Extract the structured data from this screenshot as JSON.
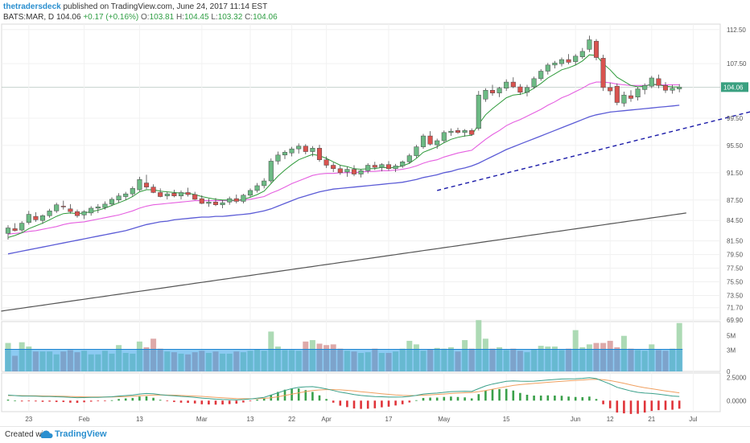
{
  "header": {
    "username": "thetradersdeck",
    "published": "published on TradingView.com, June 24, 2017 11:14 EST",
    "symbol": "BATS:MAR, D",
    "last": "104.06",
    "change": "+0.17 (+0.16%)",
    "open_label": "O:",
    "open": "103.81",
    "high_label": "H:",
    "high": "104.45",
    "low_label": "L:",
    "low": "103.32",
    "close_label": "C:",
    "close": "104.06"
  },
  "footer": {
    "created_with": "Created with",
    "brand": "TradingView"
  },
  "colors": {
    "up": "#6cba84",
    "down": "#d9534f",
    "ema_short": "#2e9a3a",
    "ema_mid": "#e55ee0",
    "ema_long": "#5b5bd6",
    "sma_long": "#555555",
    "trendline": "#1a1aa8",
    "volume_up": "#9fd3a8",
    "volume_down": "#d89a9a",
    "volume_ma": "#2e9ee8",
    "macd": "#3aa08a",
    "signal": "#f0a060",
    "price_tag": "#3aa080"
  },
  "chart_data": [
    {
      "type": "candlestick",
      "panel": "price",
      "ylim": [
        69.9,
        113.3
      ],
      "y_ticks": [
        "112.50",
        "107.50",
        "104.06",
        "99.50",
        "95.50",
        "91.50",
        "87.50",
        "84.50",
        "81.50",
        "79.50",
        "77.50",
        "75.50",
        "73.50",
        "71.70",
        "69.90"
      ],
      "x_ticks": [
        "23",
        "Feb",
        "13",
        "Mar",
        "13",
        "22",
        "Apr",
        "17",
        "May",
        "15",
        "Jun",
        "12",
        "21",
        "Jul"
      ],
      "last_price": "104.06",
      "candles": [
        [
          82.6,
          83.8,
          81.7,
          83.4
        ],
        [
          83.3,
          84.1,
          82.9,
          83.0
        ],
        [
          83.1,
          84.4,
          82.8,
          84.1
        ],
        [
          84.2,
          85.9,
          83.9,
          85.4
        ],
        [
          85.1,
          85.7,
          84.3,
          84.6
        ],
        [
          84.5,
          85.4,
          84.0,
          85.2
        ],
        [
          85.2,
          86.2,
          84.9,
          85.9
        ],
        [
          85.9,
          87.1,
          85.6,
          86.8
        ],
        [
          86.6,
          87.4,
          86.1,
          86.5
        ],
        [
          86.2,
          86.9,
          85.5,
          85.8
        ],
        [
          85.8,
          86.1,
          84.9,
          85.2
        ],
        [
          85.3,
          86.0,
          84.7,
          85.8
        ],
        [
          85.6,
          86.6,
          85.2,
          86.3
        ],
        [
          86.3,
          86.9,
          85.6,
          86.5
        ],
        [
          86.4,
          87.3,
          86.1,
          86.9
        ],
        [
          86.9,
          87.9,
          86.6,
          87.6
        ],
        [
          87.5,
          88.5,
          87.1,
          88.1
        ],
        [
          88.0,
          88.7,
          87.5,
          88.4
        ],
        [
          88.4,
          89.5,
          88.0,
          89.2
        ],
        [
          89.0,
          90.9,
          88.8,
          90.5
        ],
        [
          90.0,
          91.2,
          89.1,
          89.4
        ],
        [
          89.4,
          89.8,
          88.5,
          88.6
        ],
        [
          88.6,
          89.2,
          87.9,
          88.0
        ],
        [
          88.1,
          88.7,
          87.6,
          88.4
        ],
        [
          88.5,
          89.0,
          87.9,
          88.1
        ],
        [
          88.1,
          88.9,
          87.6,
          88.6
        ],
        [
          88.6,
          89.3,
          88.0,
          88.3
        ],
        [
          88.3,
          88.7,
          87.5,
          87.6
        ],
        [
          87.7,
          88.2,
          86.9,
          87.0
        ],
        [
          87.0,
          87.7,
          86.5,
          87.2
        ],
        [
          87.2,
          87.8,
          86.6,
          86.8
        ],
        [
          86.8,
          87.5,
          86.3,
          87.1
        ],
        [
          87.2,
          88.0,
          86.8,
          87.7
        ],
        [
          87.7,
          88.3,
          87.0,
          87.3
        ],
        [
          87.3,
          88.4,
          87.0,
          88.2
        ],
        [
          88.2,
          89.2,
          87.9,
          88.9
        ],
        [
          88.9,
          90.0,
          88.6,
          89.6
        ],
        [
          89.6,
          90.7,
          89.2,
          90.3
        ],
        [
          90.3,
          93.6,
          90.0,
          93.2
        ],
        [
          93.2,
          94.6,
          92.7,
          94.1
        ],
        [
          94.1,
          94.8,
          93.5,
          94.5
        ],
        [
          94.4,
          95.3,
          93.9,
          95.0
        ],
        [
          95.0,
          95.8,
          94.3,
          95.4
        ],
        [
          95.4,
          95.7,
          94.2,
          94.6
        ],
        [
          94.6,
          95.4,
          93.9,
          95.1
        ],
        [
          95.1,
          95.6,
          93.1,
          93.4
        ],
        [
          93.4,
          93.9,
          92.2,
          92.6
        ],
        [
          92.6,
          93.0,
          91.6,
          92.1
        ],
        [
          92.1,
          92.6,
          91.2,
          91.5
        ],
        [
          91.6,
          92.4,
          90.9,
          92.0
        ],
        [
          92.0,
          92.6,
          91.0,
          91.3
        ],
        [
          91.3,
          92.0,
          90.8,
          91.8
        ],
        [
          91.8,
          92.9,
          91.4,
          92.6
        ],
        [
          92.6,
          93.1,
          91.9,
          92.3
        ],
        [
          92.3,
          92.9,
          91.7,
          92.7
        ],
        [
          92.7,
          93.2,
          91.8,
          92.1
        ],
        [
          92.1,
          92.8,
          91.6,
          92.5
        ],
        [
          92.5,
          93.3,
          92.2,
          93.1
        ],
        [
          93.1,
          94.3,
          92.8,
          94.0
        ],
        [
          94.0,
          95.6,
          93.7,
          95.3
        ],
        [
          95.3,
          97.2,
          95.0,
          96.9
        ],
        [
          96.9,
          97.6,
          95.5,
          95.7
        ],
        [
          95.6,
          96.5,
          95.0,
          96.2
        ],
        [
          96.2,
          97.7,
          95.9,
          97.4
        ],
        [
          97.4,
          98.0,
          96.9,
          97.6
        ],
        [
          97.7,
          98.1,
          97.2,
          97.4
        ],
        [
          97.4,
          97.9,
          96.8,
          97.7
        ],
        [
          97.7,
          98.0,
          96.9,
          97.1
        ],
        [
          98.0,
          103.5,
          97.7,
          102.9
        ],
        [
          102.3,
          103.9,
          101.9,
          103.6
        ],
        [
          103.6,
          104.4,
          102.8,
          103.2
        ],
        [
          103.2,
          104.1,
          102.6,
          103.9
        ],
        [
          103.9,
          105.2,
          103.5,
          104.8
        ],
        [
          104.8,
          105.5,
          103.9,
          104.1
        ],
        [
          104.1,
          104.5,
          102.9,
          103.3
        ],
        [
          103.3,
          104.4,
          102.7,
          104.0
        ],
        [
          104.1,
          105.6,
          103.8,
          105.3
        ],
        [
          105.3,
          106.7,
          105.0,
          106.4
        ],
        [
          106.4,
          107.6,
          105.9,
          107.3
        ],
        [
          107.3,
          107.9,
          106.8,
          107.6
        ],
        [
          107.5,
          108.4,
          107.1,
          108.1
        ],
        [
          108.1,
          108.9,
          107.4,
          107.7
        ],
        [
          107.8,
          108.9,
          107.3,
          108.6
        ],
        [
          108.5,
          109.8,
          108.2,
          109.3
        ],
        [
          109.6,
          111.6,
          109.2,
          111.0
        ],
        [
          110.8,
          111.1,
          108.0,
          108.4
        ],
        [
          108.3,
          108.8,
          103.5,
          104.0
        ],
        [
          104.0,
          104.7,
          102.9,
          103.5
        ],
        [
          104.2,
          104.6,
          101.4,
          101.8
        ],
        [
          101.7,
          103.4,
          101.2,
          102.9
        ],
        [
          102.8,
          103.6,
          101.9,
          102.4
        ],
        [
          102.6,
          104.1,
          102.1,
          103.8
        ],
        [
          103.7,
          104.6,
          103.0,
          104.3
        ],
        [
          104.2,
          105.7,
          103.9,
          105.4
        ],
        [
          105.3,
          105.9,
          103.9,
          104.3
        ],
        [
          104.3,
          104.8,
          103.2,
          103.6
        ],
        [
          103.6,
          104.4,
          103.1,
          103.9
        ],
        [
          103.8,
          104.5,
          103.3,
          104.06
        ]
      ],
      "ema_short": [
        82.0,
        82.3,
        82.7,
        83.3,
        83.7,
        84.1,
        84.6,
        85.1,
        85.5,
        85.6,
        85.5,
        85.6,
        85.8,
        86.0,
        86.3,
        86.7,
        87.1,
        87.5,
        88.0,
        88.7,
        89.0,
        89.0,
        88.8,
        88.7,
        88.6,
        88.5,
        88.5,
        88.3,
        88.0,
        87.8,
        87.6,
        87.5,
        87.5,
        87.4,
        87.6,
        87.9,
        88.3,
        88.8,
        89.9,
        91.0,
        91.9,
        92.7,
        93.4,
        93.8,
        94.2,
        94.0,
        93.6,
        93.1,
        92.6,
        92.4,
        92.1,
        92.0,
        92.1,
        92.1,
        92.3,
        92.2,
        92.3,
        92.5,
        92.9,
        93.6,
        94.5,
        94.9,
        95.3,
        95.9,
        96.4,
        96.7,
        96.9,
        97.0,
        98.6,
        100.0,
        100.9,
        101.7,
        102.5,
        102.9,
        103.0,
        103.3,
        103.9,
        104.6,
        105.4,
        106.0,
        106.6,
        106.9,
        107.3,
        107.9,
        108.8,
        108.7,
        107.5,
        106.6,
        105.5,
        104.9,
        104.3,
        104.1,
        104.2,
        104.5,
        104.4,
        104.2,
        104.1,
        104.07
      ],
      "ema_mid": [
        82.5,
        82.6,
        82.7,
        82.9,
        83.0,
        83.2,
        83.4,
        83.6,
        83.9,
        84.1,
        84.2,
        84.3,
        84.5,
        84.7,
        84.9,
        85.1,
        85.3,
        85.6,
        85.9,
        86.3,
        86.6,
        86.8,
        86.9,
        87.0,
        87.1,
        87.2,
        87.3,
        87.4,
        87.4,
        87.4,
        87.4,
        87.4,
        87.4,
        87.4,
        87.5,
        87.6,
        87.8,
        88.0,
        88.5,
        88.9,
        89.4,
        89.9,
        90.3,
        90.7,
        91.1,
        91.3,
        91.4,
        91.4,
        91.5,
        91.5,
        91.5,
        91.6,
        91.7,
        91.7,
        91.8,
        91.8,
        91.9,
        92.0,
        92.2,
        92.5,
        92.9,
        93.2,
        93.4,
        93.8,
        94.1,
        94.4,
        94.6,
        94.8,
        95.6,
        96.4,
        97.1,
        97.7,
        98.4,
        98.9,
        99.3,
        99.8,
        100.3,
        100.8,
        101.4,
        101.9,
        102.5,
        102.9,
        103.4,
        103.9,
        104.5,
        104.8,
        104.8,
        104.7,
        104.5,
        104.4,
        104.3,
        104.3,
        104.3,
        104.4,
        104.4,
        104.4,
        104.4,
        104.4
      ],
      "ema_long": [
        79.6,
        79.8,
        80.0,
        80.2,
        80.4,
        80.6,
        80.8,
        81.0,
        81.2,
        81.4,
        81.6,
        81.8,
        82.0,
        82.2,
        82.4,
        82.6,
        82.8,
        83.0,
        83.3,
        83.6,
        83.9,
        84.1,
        84.3,
        84.4,
        84.6,
        84.7,
        84.8,
        84.9,
        85.0,
        85.0,
        85.1,
        85.1,
        85.2,
        85.3,
        85.4,
        85.5,
        85.7,
        85.9,
        86.2,
        86.6,
        87.0,
        87.4,
        87.8,
        88.1,
        88.4,
        88.7,
        88.9,
        89.1,
        89.2,
        89.3,
        89.4,
        89.5,
        89.6,
        89.7,
        89.8,
        89.9,
        90.0,
        90.1,
        90.3,
        90.5,
        90.8,
        91.0,
        91.2,
        91.5,
        91.7,
        92.0,
        92.2,
        92.5,
        92.9,
        93.4,
        93.9,
        94.4,
        94.9,
        95.3,
        95.7,
        96.1,
        96.5,
        96.9,
        97.3,
        97.7,
        98.1,
        98.5,
        98.9,
        99.3,
        99.7,
        100.0,
        100.2,
        100.4,
        100.5,
        100.6,
        100.7,
        100.8,
        100.9,
        101.0,
        101.1,
        101.2,
        101.3,
        101.4
      ],
      "sma_long_start": 71.2,
      "sma_long_end": 85.6,
      "trendline": {
        "from": [
          62,
          88.9
        ],
        "to": [
          122,
          104.2
        ]
      }
    },
    {
      "type": "bar",
      "panel": "volume",
      "ylim": [
        0,
        7
      ],
      "y_ticks": [
        "5M",
        "3M",
        "0"
      ],
      "volume": [
        4.0,
        2.2,
        4.1,
        3.5,
        2.8,
        2.8,
        2.8,
        2.4,
        2.8,
        3.0,
        2.7,
        2.9,
        2.4,
        2.4,
        2.9,
        2.5,
        3.7,
        2.6,
        2.5,
        4.2,
        3.4,
        4.6,
        3.2,
        2.8,
        2.7,
        2.5,
        2.4,
        2.7,
        2.9,
        2.6,
        2.8,
        2.5,
        2.5,
        2.8,
        2.7,
        2.9,
        3.1,
        2.9,
        5.6,
        3.5,
        3.0,
        3.0,
        2.9,
        4.2,
        4.4,
        3.9,
        3.7,
        3.8,
        3.2,
        2.9,
        2.8,
        2.6,
        2.7,
        3.2,
        2.6,
        2.6,
        2.8,
        3.2,
        4.3,
        3.8,
        2.9,
        3.1,
        3.3,
        3.2,
        3.4,
        2.8,
        4.4,
        3.2,
        7.2,
        4.6,
        3.2,
        3.4,
        3.0,
        3.2,
        2.9,
        2.7,
        3.1,
        3.6,
        3.5,
        3.5,
        3.0,
        3.2,
        5.8,
        3.4,
        3.8,
        4.0,
        4.0,
        4.3,
        3.4,
        5.0,
        3.2,
        3.0,
        2.9,
        3.8,
        3.0,
        2.9,
        3.2,
        6.8
      ],
      "volume_ma": 3.1
    },
    {
      "type": "line",
      "panel": "macd",
      "ylim": [
        -1.2,
        3.0
      ],
      "y_ticks": [
        "2.5000",
        "0.0000"
      ],
      "macd": [
        0.6,
        0.55,
        0.5,
        0.5,
        0.48,
        0.45,
        0.45,
        0.42,
        0.4,
        0.35,
        0.32,
        0.33,
        0.35,
        0.36,
        0.38,
        0.42,
        0.5,
        0.55,
        0.6,
        0.72,
        0.78,
        0.74,
        0.65,
        0.58,
        0.52,
        0.46,
        0.42,
        0.36,
        0.28,
        0.22,
        0.16,
        0.12,
        0.1,
        0.08,
        0.12,
        0.18,
        0.26,
        0.36,
        0.6,
        0.85,
        1.1,
        1.3,
        1.45,
        1.5,
        1.52,
        1.42,
        1.28,
        1.1,
        0.92,
        0.8,
        0.66,
        0.56,
        0.5,
        0.44,
        0.42,
        0.38,
        0.38,
        0.4,
        0.46,
        0.58,
        0.72,
        0.78,
        0.82,
        0.9,
        0.98,
        1.0,
        1.02,
        1.0,
        1.3,
        1.6,
        1.8,
        1.95,
        2.1,
        2.15,
        2.12,
        2.1,
        2.12,
        2.18,
        2.25,
        2.3,
        2.35,
        2.36,
        2.38,
        2.42,
        2.5,
        2.4,
        2.1,
        1.8,
        1.45,
        1.25,
        1.05,
        0.9,
        0.82,
        0.78,
        0.7,
        0.6,
        0.5,
        0.45
      ],
      "signal": [
        0.55,
        0.55,
        0.54,
        0.53,
        0.52,
        0.51,
        0.5,
        0.49,
        0.47,
        0.45,
        0.43,
        0.41,
        0.4,
        0.39,
        0.39,
        0.4,
        0.42,
        0.44,
        0.47,
        0.52,
        0.57,
        0.6,
        0.61,
        0.6,
        0.59,
        0.56,
        0.53,
        0.5,
        0.46,
        0.41,
        0.36,
        0.31,
        0.27,
        0.23,
        0.21,
        0.2,
        0.21,
        0.24,
        0.31,
        0.42,
        0.56,
        0.71,
        0.85,
        0.98,
        1.09,
        1.16,
        1.2,
        1.2,
        1.17,
        1.12,
        1.05,
        0.97,
        0.9,
        0.82,
        0.75,
        0.68,
        0.62,
        0.58,
        0.55,
        0.56,
        0.59,
        0.63,
        0.67,
        0.72,
        0.78,
        0.82,
        0.86,
        0.89,
        0.98,
        1.1,
        1.24,
        1.38,
        1.52,
        1.65,
        1.74,
        1.81,
        1.87,
        1.93,
        1.99,
        2.05,
        2.11,
        2.16,
        2.2,
        2.25,
        2.3,
        2.32,
        2.28,
        2.18,
        2.04,
        1.88,
        1.71,
        1.55,
        1.41,
        1.29,
        1.17,
        1.06,
        0.95,
        0.85
      ]
    }
  ]
}
